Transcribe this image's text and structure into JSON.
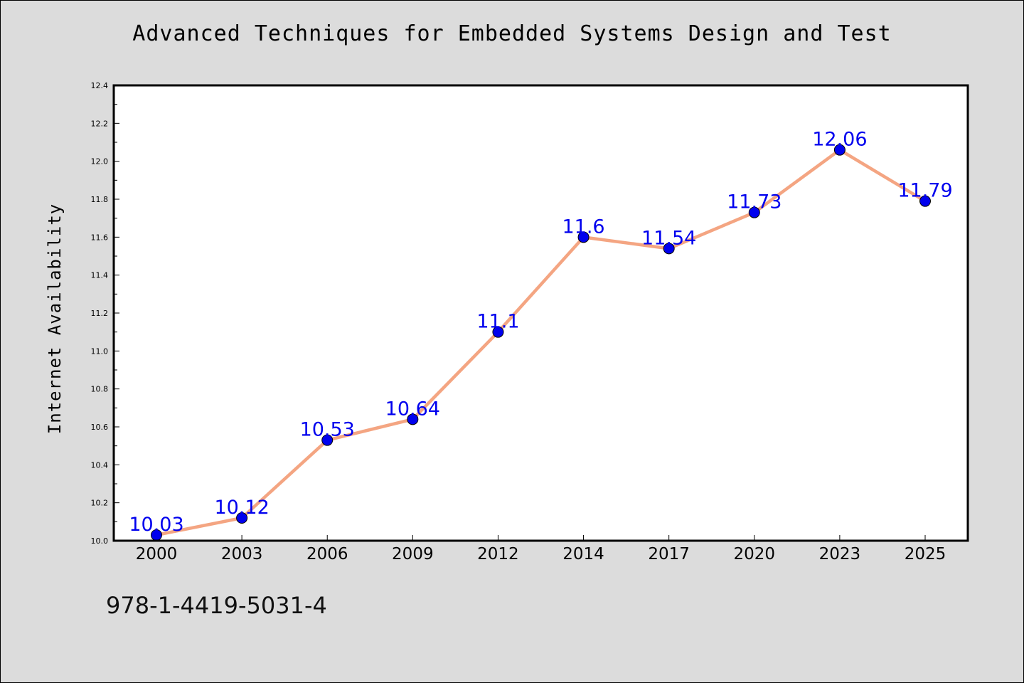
{
  "chart_data": {
    "type": "line",
    "title": "Advanced Techniques for Embedded Systems Design and Test",
    "xlabel": "",
    "ylabel": "Internet Availability",
    "categories": [
      "2000",
      "2003",
      "2006",
      "2009",
      "2012",
      "2014",
      "2017",
      "2020",
      "2023",
      "2025"
    ],
    "series": [
      {
        "values": [
          10.03,
          10.12,
          10.53,
          10.64,
          11.1,
          11.6,
          11.54,
          11.73,
          12.06,
          11.79
        ],
        "labels": [
          "10.03",
          "10.12",
          "10.53",
          "10.64",
          "11.1",
          "11.6",
          "11.54",
          "11.73",
          "12.06",
          "11.79"
        ]
      }
    ],
    "ylim": [
      10.0,
      12.4
    ],
    "yticks": [
      "10.0",
      "10.2",
      "10.4",
      "10.6",
      "10.8",
      "11.0",
      "11.2",
      "11.4",
      "11.6",
      "11.8",
      "12.0",
      "12.2",
      "12.4"
    ],
    "grid": false,
    "legend": "none",
    "colors": {
      "line": "#f4a582",
      "marker": "#0000ee",
      "data_label": "#0000ee",
      "plot_background": "#ffffff",
      "figure_background": "#dcdcdc"
    }
  },
  "footer": {
    "isbn": "978-1-4419-5031-4"
  }
}
